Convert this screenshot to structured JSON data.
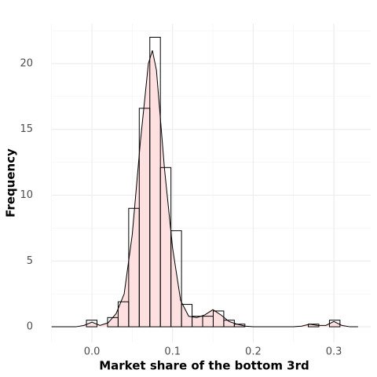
{
  "chart_data": {
    "type": "histogram",
    "x_label": "Market share of the bottom 3rd",
    "y_label": "Frequency",
    "bins": [
      -0.0068,
      0.0063,
      0.0194,
      0.0325,
      0.0456,
      0.0587,
      0.0718,
      0.0849,
      0.098,
      0.1111,
      0.1242,
      0.1373,
      0.1504,
      0.1635,
      0.1766,
      0.1897,
      0.2028,
      0.2159,
      0.229,
      0.2421,
      0.2552,
      0.2683,
      0.2814,
      0.2945,
      0.3076
    ],
    "counts": [
      0.5,
      0,
      0.7,
      1.9,
      9,
      16.6,
      22,
      12.1,
      7.3,
      1.7,
      0.8,
      0.8,
      1.2,
      0.5,
      0.2,
      0,
      0,
      0,
      0,
      0,
      0,
      0.2,
      0,
      0.5
    ],
    "bar_edge_color": "#000000",
    "density": {
      "x": [
        -0.05,
        -0.02,
        -0.01,
        0,
        0.01,
        0.02,
        0.03,
        0.04,
        0.05,
        0.06,
        0.07,
        0.075,
        0.08,
        0.09,
        0.1,
        0.11,
        0.12,
        0.13,
        0.14,
        0.15,
        0.16,
        0.17,
        0.18,
        0.19,
        0.2,
        0.25,
        0.26,
        0.27,
        0.28,
        0.29,
        0.3,
        0.31,
        0.32,
        0.33
      ],
      "values": [
        0,
        0,
        0.1,
        0.35,
        0.1,
        0.3,
        1.0,
        2.5,
        7,
        14,
        20,
        21,
        19.5,
        12,
        6,
        2,
        0.8,
        0.7,
        0.9,
        1.3,
        0.9,
        0.4,
        0.2,
        0.05,
        0,
        0,
        0.05,
        0.2,
        0.1,
        0.1,
        0.4,
        0.1,
        0,
        0
      ],
      "fill": "#ffe0e0",
      "color": "#000000"
    },
    "xlim": [
      -0.0497,
      0.3457
    ],
    "ylim": [
      -1.19,
      23.04
    ],
    "xticks": [
      {
        "value": 0,
        "label": "0.0"
      },
      0.1,
      0.2,
      0.3
    ],
    "yticks": [
      0,
      5,
      10,
      15,
      20
    ],
    "minor_xticks": [
      -0.05,
      0.05,
      0.15,
      0.25
    ],
    "minor_yticks": [
      2.5,
      7.5,
      12.5,
      17.5,
      22.5
    ],
    "grid": true
  }
}
